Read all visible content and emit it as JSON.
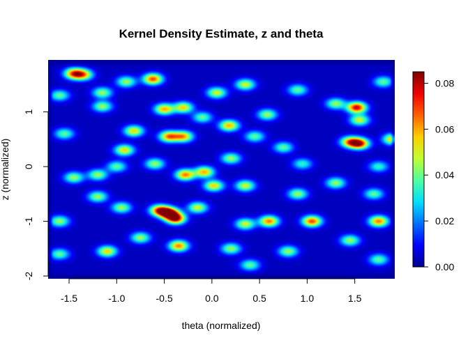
{
  "chart_data": {
    "type": "heatmap",
    "title": "Kernel Density Estimate, z and theta",
    "xlabel": "theta (normalized)",
    "ylabel": "z (normalized)",
    "xlim": [
      -1.72,
      1.92
    ],
    "ylim": [
      -2.05,
      1.95
    ],
    "x_ticks": [
      -1.5,
      -1.0,
      -0.5,
      0.0,
      0.5,
      1.0,
      1.5
    ],
    "x_tick_labels": [
      "-1.5",
      "-1.0",
      "-0.5",
      "0.0",
      "0.5",
      "1.0",
      "1.5"
    ],
    "y_ticks": [
      -2,
      -1,
      0,
      1
    ],
    "y_tick_labels": [
      "-2",
      "-1",
      "0",
      "1"
    ],
    "colorbar": {
      "range": [
        0.0,
        0.085
      ],
      "ticks": [
        0.0,
        0.02,
        0.04,
        0.06,
        0.08
      ],
      "tick_labels": [
        "0.00",
        "0.02",
        "0.04",
        "0.06",
        "0.08"
      ],
      "palette": [
        "#00008f",
        "#0000ff",
        "#0070ff",
        "#00dfff",
        "#50ff9f",
        "#bfff30",
        "#ffcf00",
        "#ff6000",
        "#ef0000",
        "#800000"
      ]
    },
    "peaks": [
      {
        "x": -0.45,
        "y": -0.85,
        "density": 0.085
      },
      {
        "x": -0.38,
        "y": -0.95,
        "density": 0.075
      },
      {
        "x": -0.55,
        "y": -0.8,
        "density": 0.065
      },
      {
        "x": 1.52,
        "y": 1.08,
        "density": 0.075
      },
      {
        "x": 1.55,
        "y": 0.42,
        "density": 0.07
      },
      {
        "x": 1.45,
        "y": 0.45,
        "density": 0.055
      },
      {
        "x": -0.62,
        "y": 1.6,
        "density": 0.065
      },
      {
        "x": -1.45,
        "y": 1.7,
        "density": 0.06
      },
      {
        "x": -1.35,
        "y": 1.68,
        "density": 0.05
      },
      {
        "x": -0.45,
        "y": 0.55,
        "density": 0.06
      },
      {
        "x": -0.3,
        "y": 0.55,
        "density": 0.055
      },
      {
        "x": -0.5,
        "y": 1.05,
        "density": 0.055
      },
      {
        "x": -0.3,
        "y": 1.08,
        "density": 0.05
      },
      {
        "x": -0.28,
        "y": -0.15,
        "density": 0.06
      },
      {
        "x": -0.08,
        "y": -0.1,
        "density": 0.055
      },
      {
        "x": 0.02,
        "y": -0.35,
        "density": 0.05
      },
      {
        "x": 1.05,
        "y": -1.0,
        "density": 0.065
      },
      {
        "x": 0.6,
        "y": -1.0,
        "density": 0.06
      },
      {
        "x": 1.75,
        "y": -1.0,
        "density": 0.06
      },
      {
        "x": -0.35,
        "y": -1.45,
        "density": 0.06
      },
      {
        "x": -1.1,
        "y": -1.55,
        "density": 0.05
      },
      {
        "x": 0.18,
        "y": 0.75,
        "density": 0.055
      },
      {
        "x": -0.82,
        "y": 0.65,
        "density": 0.05
      },
      {
        "x": -0.92,
        "y": 0.3,
        "density": 0.05
      },
      {
        "x": 1.9,
        "y": 0.5,
        "density": 0.055
      },
      {
        "x": 0.35,
        "y": 1.5,
        "density": 0.045
      },
      {
        "x": 0.05,
        "y": 1.35,
        "density": 0.045
      },
      {
        "x": -1.15,
        "y": 1.35,
        "density": 0.04
      },
      {
        "x": -1.15,
        "y": 1.1,
        "density": 0.04
      },
      {
        "x": 1.55,
        "y": 0.85,
        "density": 0.045
      },
      {
        "x": 1.3,
        "y": 1.15,
        "density": 0.04
      },
      {
        "x": 0.58,
        "y": 0.95,
        "density": 0.04
      },
      {
        "x": -0.15,
        "y": -0.75,
        "density": 0.045
      },
      {
        "x": 0.35,
        "y": -0.35,
        "density": 0.045
      },
      {
        "x": -1.45,
        "y": -0.2,
        "density": 0.04
      },
      {
        "x": -1.2,
        "y": -0.15,
        "density": 0.04
      },
      {
        "x": -1.6,
        "y": -1.0,
        "density": 0.04
      },
      {
        "x": -1.2,
        "y": -0.55,
        "density": 0.04
      },
      {
        "x": -0.95,
        "y": -0.75,
        "density": 0.04
      },
      {
        "x": 0.35,
        "y": -1.05,
        "density": 0.045
      },
      {
        "x": 0.9,
        "y": -0.5,
        "density": 0.04
      },
      {
        "x": 1.3,
        "y": -0.3,
        "density": 0.04
      },
      {
        "x": 1.45,
        "y": -1.35,
        "density": 0.04
      },
      {
        "x": 0.8,
        "y": -1.55,
        "density": 0.04
      },
      {
        "x": 0.2,
        "y": -1.5,
        "density": 0.04
      },
      {
        "x": -0.75,
        "y": -1.3,
        "density": 0.04
      },
      {
        "x": -1.6,
        "y": 1.3,
        "density": 0.035
      },
      {
        "x": -0.9,
        "y": 1.55,
        "density": 0.04
      },
      {
        "x": 0.9,
        "y": 1.4,
        "density": 0.035
      },
      {
        "x": 1.8,
        "y": 1.55,
        "density": 0.035
      },
      {
        "x": 0.75,
        "y": 0.35,
        "density": 0.035
      },
      {
        "x": 0.95,
        "y": 0.05,
        "density": 0.03
      },
      {
        "x": -0.6,
        "y": 0.05,
        "density": 0.04
      },
      {
        "x": -1.0,
        "y": 0.0,
        "density": 0.035
      },
      {
        "x": 0.2,
        "y": 0.15,
        "density": 0.04
      },
      {
        "x": 1.7,
        "y": -0.5,
        "density": 0.035
      },
      {
        "x": 1.75,
        "y": 0.0,
        "density": 0.03
      },
      {
        "x": -1.55,
        "y": 0.6,
        "density": 0.035
      },
      {
        "x": -1.6,
        "y": -1.6,
        "density": 0.035
      },
      {
        "x": 1.75,
        "y": -1.7,
        "density": 0.035
      },
      {
        "x": 0.4,
        "y": -1.8,
        "density": 0.035
      },
      {
        "x": -0.1,
        "y": 0.9,
        "density": 0.035
      },
      {
        "x": 0.45,
        "y": 0.55,
        "density": 0.035
      }
    ]
  }
}
